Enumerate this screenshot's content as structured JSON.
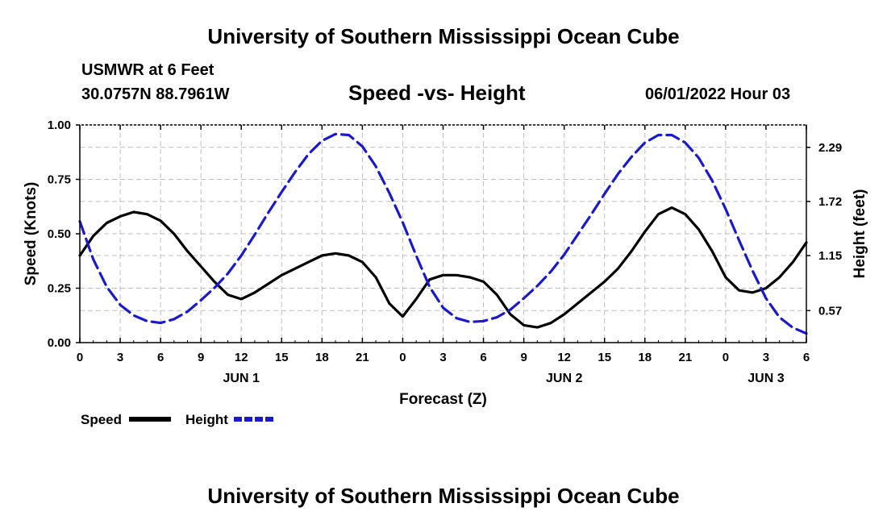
{
  "header": {
    "title": "University of Southern Mississippi Ocean Cube",
    "station": "USMWR at 6 Feet",
    "coordinates": "30.0757N  88.7961W",
    "subtitle": "Speed -vs- Height",
    "datetime": "06/01/2022 Hour 03"
  },
  "footer": {
    "title": "University of Southern Mississippi Ocean Cube"
  },
  "chart_data": {
    "type": "line",
    "title": "Speed -vs- Height",
    "xlabel": "Forecast (Z)",
    "ylabel": "Speed (Knots)",
    "y2label": "Height (feet)",
    "x_range": [
      0,
      54
    ],
    "x_ticks": [
      0,
      3,
      6,
      9,
      12,
      15,
      18,
      21,
      24,
      27,
      30,
      33,
      36,
      39,
      42,
      45,
      48,
      51,
      54
    ],
    "x_tick_labels": [
      "0",
      "3",
      "6",
      "9",
      "12",
      "15",
      "18",
      "21",
      "0",
      "3",
      "6",
      "9",
      "12",
      "15",
      "18",
      "21",
      "0",
      "3",
      "6"
    ],
    "day_labels": [
      {
        "x": 12,
        "label": "JUN 1"
      },
      {
        "x": 36,
        "label": "JUN 2"
      },
      {
        "x": 51,
        "label": "JUN 3"
      }
    ],
    "ylim": [
      0,
      1
    ],
    "y_ticks": [
      0,
      0.25,
      0.5,
      0.75,
      1.0
    ],
    "y_tick_labels": [
      "0.00",
      "0.25",
      "0.50",
      "0.75",
      "1.00"
    ],
    "y2_ticks": [
      0.57,
      1.15,
      1.72,
      2.29
    ],
    "y2_tick_labels": [
      "0.57",
      "1.15",
      "1.72",
      "2.29"
    ],
    "y2_scale": {
      "y1_at_0_57": 0.147,
      "y1_at_2_29": 0.897
    },
    "grid": true,
    "legend": [
      {
        "name": "Speed",
        "color": "#000000",
        "style": "solid"
      },
      {
        "name": "Height",
        "color": "#1a1acc",
        "style": "dashed"
      }
    ],
    "series": [
      {
        "name": "Speed",
        "axis": "left",
        "color": "#000000",
        "x": [
          0,
          1,
          2,
          3,
          4,
          5,
          6,
          7,
          8,
          9,
          10,
          11,
          12,
          13,
          14,
          15,
          16,
          17,
          18,
          19,
          20,
          21,
          22,
          23,
          24,
          25,
          26,
          27,
          28,
          29,
          30,
          31,
          32,
          33,
          34,
          35,
          36,
          37,
          38,
          39,
          40,
          41,
          42,
          43,
          44,
          45,
          46,
          47,
          48,
          49,
          50,
          51,
          52,
          53,
          54
        ],
        "values": [
          0.4,
          0.49,
          0.55,
          0.58,
          0.6,
          0.59,
          0.56,
          0.5,
          0.42,
          0.35,
          0.28,
          0.22,
          0.2,
          0.23,
          0.27,
          0.31,
          0.34,
          0.37,
          0.4,
          0.41,
          0.4,
          0.37,
          0.3,
          0.18,
          0.12,
          0.2,
          0.29,
          0.31,
          0.31,
          0.3,
          0.28,
          0.22,
          0.13,
          0.08,
          0.07,
          0.09,
          0.13,
          0.18,
          0.23,
          0.28,
          0.34,
          0.42,
          0.51,
          0.59,
          0.62,
          0.59,
          0.52,
          0.42,
          0.3,
          0.24,
          0.23,
          0.25,
          0.3,
          0.37,
          0.46
        ]
      },
      {
        "name": "Height",
        "axis": "right",
        "color": "#1a1acc",
        "x": [
          0,
          1,
          2,
          3,
          4,
          5,
          6,
          7,
          8,
          9,
          10,
          11,
          12,
          13,
          14,
          15,
          16,
          17,
          18,
          19,
          20,
          21,
          22,
          23,
          24,
          25,
          26,
          27,
          28,
          29,
          30,
          31,
          32,
          33,
          34,
          35,
          36,
          37,
          38,
          39,
          40,
          41,
          42,
          43,
          44,
          45,
          46,
          47,
          48,
          49,
          50,
          51,
          52,
          53,
          54
        ],
        "values": [
          1.51,
          1.11,
          0.82,
          0.63,
          0.52,
          0.46,
          0.44,
          0.48,
          0.56,
          0.68,
          0.81,
          0.96,
          1.15,
          1.37,
          1.6,
          1.82,
          2.03,
          2.22,
          2.36,
          2.43,
          2.42,
          2.3,
          2.09,
          1.81,
          1.5,
          1.15,
          0.82,
          0.6,
          0.49,
          0.45,
          0.46,
          0.5,
          0.58,
          0.7,
          0.83,
          0.98,
          1.16,
          1.37,
          1.58,
          1.8,
          2.01,
          2.19,
          2.34,
          2.42,
          2.42,
          2.34,
          2.18,
          1.94,
          1.64,
          1.31,
          0.99,
          0.7,
          0.5,
          0.39,
          0.33
        ]
      }
    ]
  }
}
